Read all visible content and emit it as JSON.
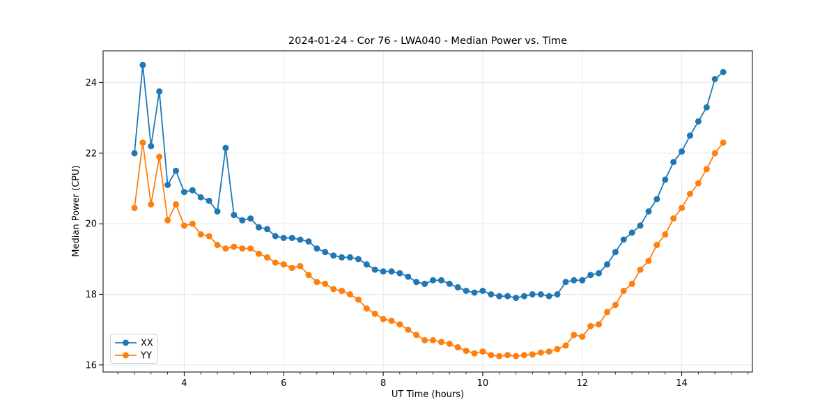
{
  "chart": {
    "title": "2024-01-24 - Cor 76 - LWA040 - Median Power vs. Time",
    "xlabel": "UT Time (hours)",
    "ylabel": "Median Power (CPU)"
  },
  "legend": {
    "items": [
      {
        "label": "XX"
      },
      {
        "label": "YY"
      }
    ]
  },
  "chart_data": {
    "type": "line",
    "title": "2024-01-24 - Cor 76 - LWA040 - Median Power vs. Time",
    "xlabel": "UT Time (hours)",
    "ylabel": "Median Power (CPU)",
    "xlim": [
      2.37,
      15.42
    ],
    "ylim": [
      15.8,
      24.9
    ],
    "x_ticks": [
      4,
      6,
      8,
      10,
      12,
      14
    ],
    "y_ticks": [
      16,
      18,
      20,
      22,
      24
    ],
    "x_minor_tick_step": 0.3333,
    "grid": true,
    "legend_position": "lower left",
    "marker": "circle",
    "background": "#ffffff",
    "grid_color": "#e7e7e7",
    "x": [
      3.0,
      3.167,
      3.333,
      3.5,
      3.667,
      3.833,
      4.0,
      4.167,
      4.333,
      4.5,
      4.667,
      4.833,
      5.0,
      5.167,
      5.333,
      5.5,
      5.667,
      5.833,
      6.0,
      6.167,
      6.333,
      6.5,
      6.667,
      6.833,
      7.0,
      7.167,
      7.333,
      7.5,
      7.667,
      7.833,
      8.0,
      8.167,
      8.333,
      8.5,
      8.667,
      8.833,
      9.0,
      9.167,
      9.333,
      9.5,
      9.667,
      9.833,
      10.0,
      10.167,
      10.333,
      10.5,
      10.667,
      10.833,
      11.0,
      11.167,
      11.333,
      11.5,
      11.667,
      11.833,
      12.0,
      12.167,
      12.333,
      12.5,
      12.667,
      12.833,
      13.0,
      13.167,
      13.333,
      13.5,
      13.667,
      13.833,
      14.0,
      14.167,
      14.333,
      14.5,
      14.667,
      14.833
    ],
    "series": [
      {
        "name": "XX",
        "color": "#1f77b4",
        "values": [
          22.0,
          24.5,
          22.2,
          23.75,
          21.1,
          21.5,
          20.9,
          20.95,
          20.75,
          20.65,
          20.35,
          22.15,
          20.25,
          20.1,
          20.15,
          19.9,
          19.85,
          19.65,
          19.6,
          19.6,
          19.55,
          19.5,
          19.3,
          19.2,
          19.1,
          19.05,
          19.05,
          19.0,
          18.85,
          18.7,
          18.65,
          18.65,
          18.6,
          18.5,
          18.35,
          18.3,
          18.4,
          18.4,
          18.3,
          18.2,
          18.1,
          18.05,
          18.1,
          18.0,
          17.95,
          17.95,
          17.9,
          17.95,
          18.0,
          18.0,
          17.95,
          18.0,
          18.35,
          18.4,
          18.4,
          18.55,
          18.6,
          18.85,
          19.2,
          19.55,
          19.75,
          19.95,
          20.35,
          20.7,
          21.25,
          21.75,
          22.05,
          22.5,
          22.9,
          23.3,
          24.1,
          24.3
        ]
      },
      {
        "name": "YY",
        "color": "#ff7f0e",
        "values": [
          20.45,
          22.3,
          20.55,
          21.9,
          20.1,
          20.55,
          19.95,
          20.0,
          19.7,
          19.65,
          19.4,
          19.3,
          19.35,
          19.3,
          19.3,
          19.15,
          19.05,
          18.9,
          18.85,
          18.75,
          18.8,
          18.55,
          18.35,
          18.3,
          18.15,
          18.1,
          18.0,
          17.85,
          17.6,
          17.45,
          17.3,
          17.25,
          17.15,
          17.0,
          16.85,
          16.7,
          16.7,
          16.65,
          16.6,
          16.5,
          16.4,
          16.33,
          16.38,
          16.28,
          16.25,
          16.28,
          16.25,
          16.28,
          16.3,
          16.35,
          16.38,
          16.45,
          16.55,
          16.85,
          16.8,
          17.1,
          17.15,
          17.5,
          17.7,
          18.1,
          18.3,
          18.7,
          18.95,
          19.4,
          19.7,
          20.15,
          20.45,
          20.85,
          21.15,
          21.55,
          22.0,
          22.3
        ]
      }
    ]
  }
}
